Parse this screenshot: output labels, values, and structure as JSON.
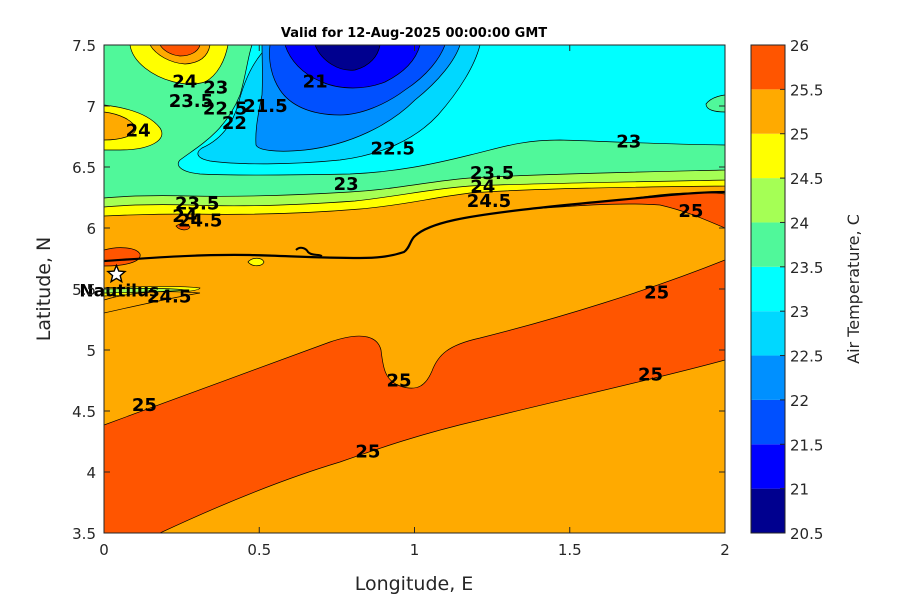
{
  "chart_data": {
    "type": "filled-contour",
    "title": "Valid for 12-Aug-2025 00:00:00 GMT",
    "xlabel": "Longitude, E",
    "ylabel": "Latitude, N",
    "xlim": [
      0,
      2
    ],
    "ylim": [
      3.5,
      7.5
    ],
    "xticks": [
      "0",
      "0.5",
      "1",
      "1.5",
      "2"
    ],
    "yticks": [
      "3.5",
      "4",
      "4.5",
      "5",
      "5.5",
      "6",
      "6.5",
      "7",
      "7.5"
    ],
    "colorbar": {
      "label": "Air Temperature, C",
      "ticks": [
        "20.5",
        "21",
        "21.5",
        "22",
        "22.5",
        "23",
        "23.5",
        "24",
        "24.5",
        "25",
        "25.5",
        "26"
      ],
      "levels": [
        20.5,
        21,
        21.5,
        22,
        22.5,
        23,
        23.5,
        24,
        24.5,
        25,
        25.5,
        26
      ],
      "colors": [
        "#00008f",
        "#0000ff",
        "#0050ff",
        "#0090ff",
        "#00d8ff",
        "#00ffff",
        "#50f89a",
        "#a5ff55",
        "#ffff00",
        "#ffaa00",
        "#ff5500",
        "#ff0000",
        "#aa0000"
      ]
    },
    "contour_labels": [
      {
        "text": "21",
        "lon": 0.68,
        "lat": 7.2
      },
      {
        "text": "21.5",
        "lon": 0.52,
        "lat": 7.0
      },
      {
        "text": "22",
        "lon": 0.42,
        "lat": 6.86
      },
      {
        "text": "22.5",
        "lon": 0.39,
        "lat": 6.98
      },
      {
        "text": "23",
        "lon": 0.36,
        "lat": 7.15
      },
      {
        "text": "23.5",
        "lon": 0.28,
        "lat": 7.04
      },
      {
        "text": "24",
        "lon": 0.26,
        "lat": 7.2
      },
      {
        "text": "24",
        "lon": 0.11,
        "lat": 6.8
      },
      {
        "text": "22.5",
        "lon": 0.93,
        "lat": 6.65
      },
      {
        "text": "23",
        "lon": 0.78,
        "lat": 6.36
      },
      {
        "text": "23",
        "lon": 1.69,
        "lat": 6.71
      },
      {
        "text": "23.5",
        "lon": 1.25,
        "lat": 6.45
      },
      {
        "text": "24",
        "lon": 1.22,
        "lat": 6.34
      },
      {
        "text": "24.5",
        "lon": 1.24,
        "lat": 6.22
      },
      {
        "text": "23.5",
        "lon": 0.3,
        "lat": 6.2
      },
      {
        "text": "24",
        "lon": 0.26,
        "lat": 6.1
      },
      {
        "text": "24.5",
        "lon": 0.31,
        "lat": 6.06
      },
      {
        "text": "25",
        "lon": 1.89,
        "lat": 6.14
      },
      {
        "text": "24.5",
        "lon": 0.21,
        "lat": 5.44
      },
      {
        "text": "25",
        "lon": 1.78,
        "lat": 5.47
      },
      {
        "text": "25",
        "lon": 0.95,
        "lat": 4.75
      },
      {
        "text": "25",
        "lon": 1.76,
        "lat": 4.8
      },
      {
        "text": "25",
        "lon": 0.13,
        "lat": 4.55
      },
      {
        "text": "25",
        "lon": 0.85,
        "lat": 4.17
      }
    ],
    "site": {
      "label": "Nautilus",
      "lon": 0.04,
      "lat": 5.62
    }
  }
}
